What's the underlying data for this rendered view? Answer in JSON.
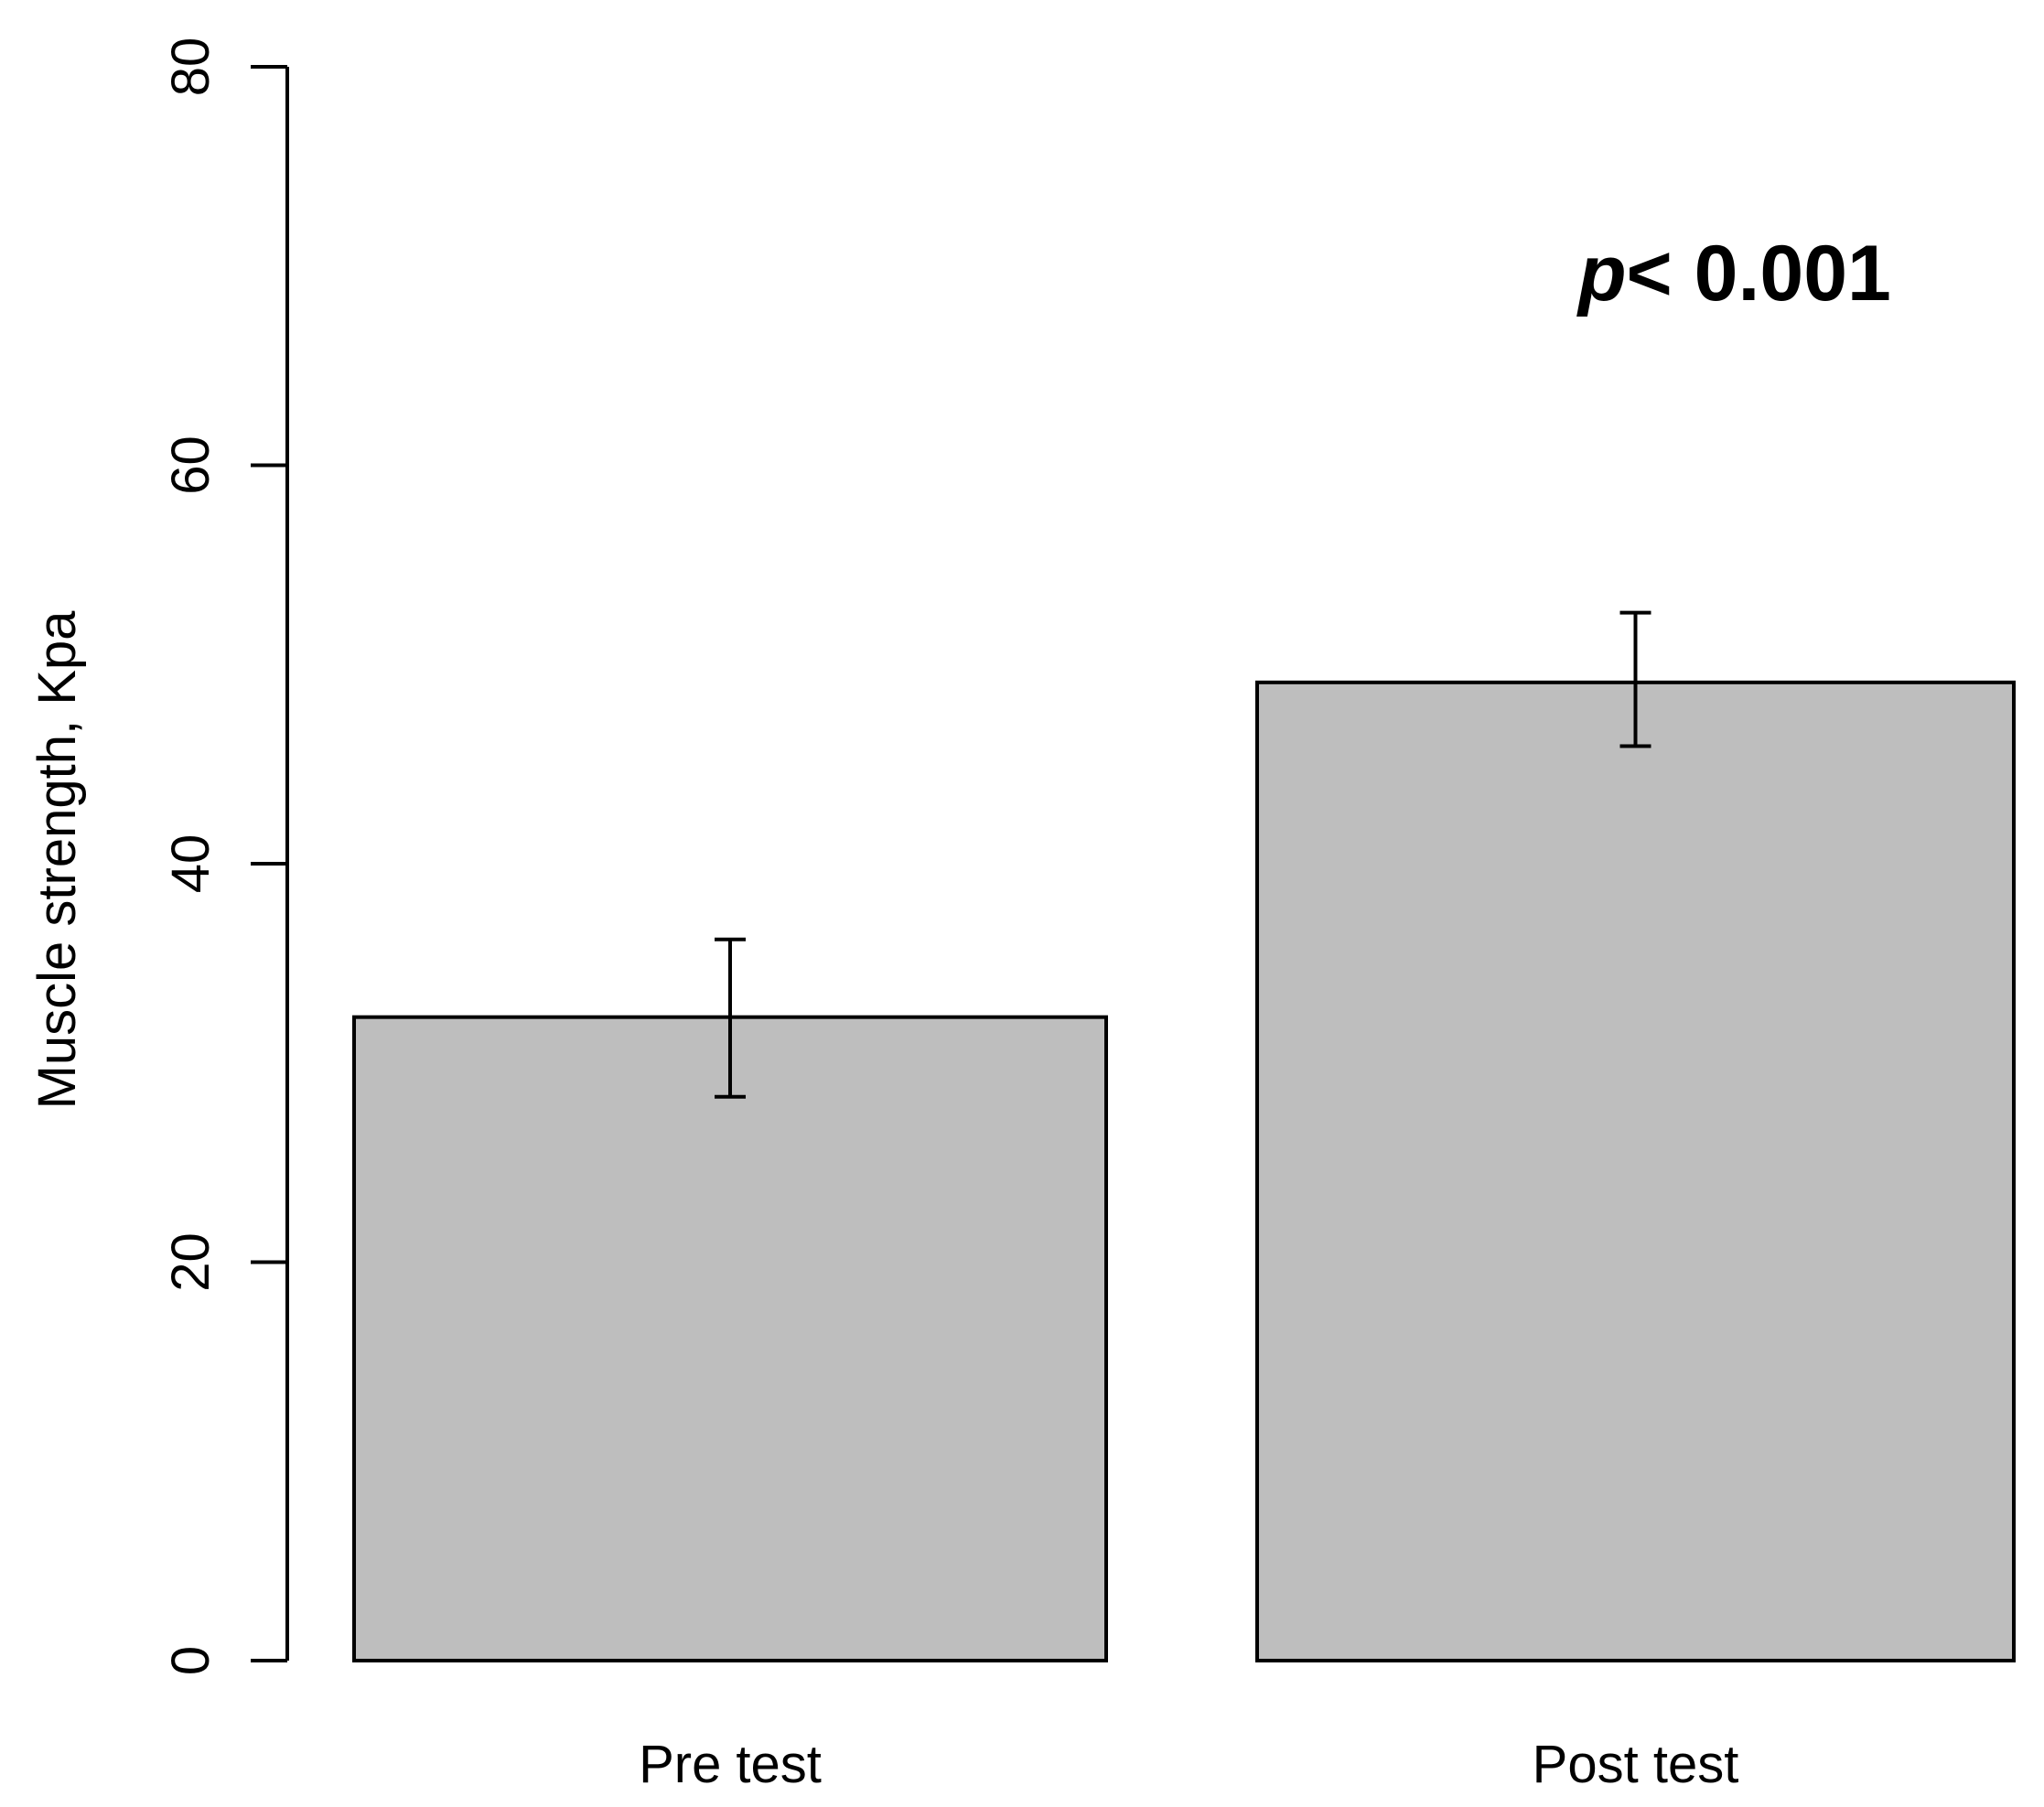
{
  "chart_data": {
    "type": "bar",
    "title": "",
    "xlabel": "",
    "ylabel": "Muscle strength, Kpa",
    "ylim": [
      0,
      80
    ],
    "yticks": [
      "0",
      "20",
      "40",
      "60",
      "80"
    ],
    "categories": [
      "Pre test",
      "Post test"
    ],
    "values": [
      32.3,
      49.1
    ],
    "error_bars": [
      {
        "lower": 28.3,
        "upper": 36.2
      },
      {
        "lower": 45.9,
        "upper": 52.6
      }
    ],
    "bar_color": "#bebebe",
    "grid": false,
    "annotation": {
      "prefix": "p",
      "text": "< 0.001"
    }
  }
}
